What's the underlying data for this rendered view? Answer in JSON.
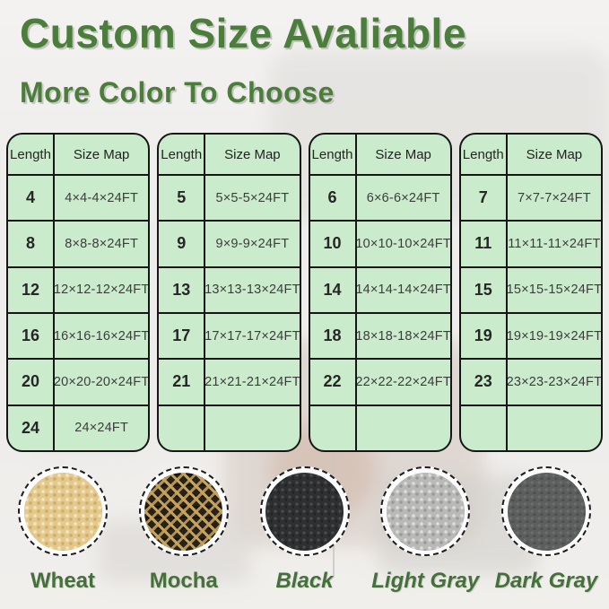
{
  "header": {
    "title": "Custom Size Avaliable",
    "subtitle": "More Color To Choose"
  },
  "colors": {
    "heading_green": "#4b7d3b",
    "label_green": "#44703a",
    "table_cell_green": "#cbeccc",
    "table_border": "#161616",
    "page_background": "#efedeb"
  },
  "tables": [
    {
      "columns": [
        "Length",
        "Size Map"
      ],
      "rows": [
        {
          "length": "4",
          "size": "4×4-4×24FT"
        },
        {
          "length": "8",
          "size": "8×8-8×24FT"
        },
        {
          "length": "12",
          "size": "12×12-12×24FT"
        },
        {
          "length": "16",
          "size": "16×16-16×24FT"
        },
        {
          "length": "20",
          "size": "20×20-20×24FT"
        },
        {
          "length": "24",
          "size": "24×24FT"
        }
      ]
    },
    {
      "columns": [
        "Length",
        "Size Map"
      ],
      "rows": [
        {
          "length": "5",
          "size": "5×5-5×24FT"
        },
        {
          "length": "9",
          "size": "9×9-9×24FT"
        },
        {
          "length": "13",
          "size": "13×13-13×24FT"
        },
        {
          "length": "17",
          "size": "17×17-17×24FT"
        },
        {
          "length": "21",
          "size": "21×21-21×24FT"
        },
        {
          "length": "",
          "size": ""
        }
      ]
    },
    {
      "columns": [
        "Length",
        "Size Map"
      ],
      "rows": [
        {
          "length": "6",
          "size": "6×6-6×24FT"
        },
        {
          "length": "10",
          "size": "10×10-10×24FT"
        },
        {
          "length": "14",
          "size": "14×14-14×24FT"
        },
        {
          "length": "18",
          "size": "18×18-18×24FT"
        },
        {
          "length": "22",
          "size": "22×22-22×24FT"
        },
        {
          "length": "",
          "size": ""
        }
      ]
    },
    {
      "columns": [
        "Length",
        "Size Map"
      ],
      "rows": [
        {
          "length": "7",
          "size": "7×7-7×24FT"
        },
        {
          "length": "11",
          "size": "11×11-11×24FT"
        },
        {
          "length": "15",
          "size": "15×15-15×24FT"
        },
        {
          "length": "19",
          "size": "19×19-19×24FT"
        },
        {
          "length": "23",
          "size": "23×23-23×24FT"
        },
        {
          "length": "",
          "size": ""
        }
      ]
    }
  ],
  "swatches": [
    {
      "label": "Wheat",
      "base_color": "#e4c98f"
    },
    {
      "label": "Mocha",
      "base_color": "#262119",
      "accent_color": "#c4a260"
    },
    {
      "label": "Black",
      "base_color": "#2e2f31"
    },
    {
      "label": "Light Gray",
      "base_color": "#b9b9b7"
    },
    {
      "label": "Dark Gray",
      "base_color": "#5c5e5d"
    }
  ]
}
